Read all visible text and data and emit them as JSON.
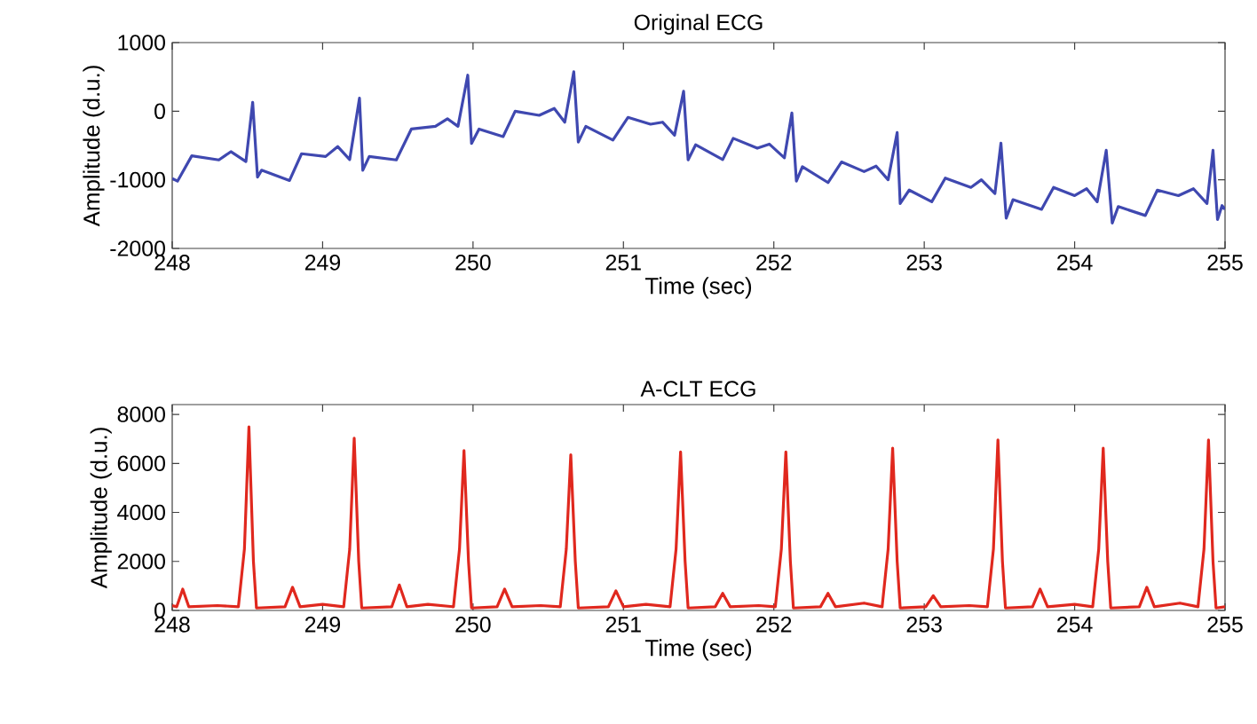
{
  "chart_data": [
    {
      "type": "line",
      "title": "Original ECG",
      "xlabel": "Time (sec)",
      "ylabel": "Amplitude (d.u.)",
      "x": [
        248.0,
        248.035,
        248.13,
        248.31,
        248.39,
        248.49,
        248.535,
        248.567,
        248.594,
        248.78,
        248.86,
        249.02,
        249.1,
        249.18,
        249.245,
        249.267,
        249.31,
        249.49,
        249.59,
        249.75,
        249.83,
        249.9,
        249.965,
        249.99,
        250.04,
        250.2,
        250.28,
        250.44,
        250.54,
        250.61,
        250.67,
        250.7,
        250.75,
        250.93,
        251.03,
        251.18,
        251.26,
        251.34,
        251.4,
        251.43,
        251.48,
        251.66,
        251.73,
        251.89,
        251.97,
        252.07,
        252.12,
        252.15,
        252.19,
        252.36,
        252.45,
        252.6,
        252.68,
        252.76,
        252.82,
        252.84,
        252.9,
        253.05,
        253.14,
        253.31,
        253.38,
        253.47,
        253.51,
        253.545,
        253.59,
        253.78,
        253.86,
        254.0,
        254.08,
        254.15,
        254.21,
        254.25,
        254.29,
        254.47,
        254.55,
        254.69,
        254.79,
        254.88,
        254.92,
        254.95,
        254.98,
        255.0
      ],
      "series": [
        {
          "color": "#3f48b0",
          "values": [
            -980,
            -1020,
            -650,
            -710,
            -590,
            -735,
            130,
            -960,
            -860,
            -1010,
            -620,
            -660,
            -515,
            -705,
            190,
            -860,
            -660,
            -710,
            -260,
            -220,
            -110,
            -220,
            525,
            -470,
            -260,
            -370,
            0,
            -60,
            40,
            -160,
            575,
            -450,
            -220,
            -420,
            -90,
            -190,
            -160,
            -350,
            290,
            -710,
            -490,
            -705,
            -395,
            -540,
            -480,
            -680,
            -25,
            -1020,
            -810,
            -1040,
            -740,
            -880,
            -800,
            -1000,
            -310,
            -1345,
            -1150,
            -1320,
            -975,
            -1110,
            -1000,
            -1200,
            -465,
            -1560,
            -1290,
            -1430,
            -1110,
            -1230,
            -1130,
            -1320,
            -570,
            -1630,
            -1390,
            -1520,
            -1150,
            -1230,
            -1130,
            -1345,
            -570,
            -1580,
            -1375,
            -1430
          ]
        }
      ],
      "xlim": [
        248,
        255
      ],
      "ylim": [
        -2000,
        1000
      ],
      "xticks": [
        248,
        249,
        250,
        251,
        252,
        253,
        254,
        255
      ],
      "yticks": [
        -2000,
        -1000,
        0,
        1000
      ]
    },
    {
      "type": "line",
      "title": "A-CLT ECG",
      "xlabel": "Time (sec)",
      "ylabel": "Amplitude (d.u.)",
      "x": [
        248.0,
        248.03,
        248.07,
        248.11,
        248.3,
        248.44,
        248.48,
        248.51,
        248.54,
        248.56,
        248.75,
        248.8,
        248.85,
        249.0,
        249.14,
        249.18,
        249.21,
        249.24,
        249.26,
        249.46,
        249.51,
        249.56,
        249.7,
        249.87,
        249.91,
        249.94,
        249.97,
        249.99,
        250.16,
        250.21,
        250.26,
        250.45,
        250.58,
        250.62,
        250.65,
        250.68,
        250.7,
        250.9,
        250.95,
        251.0,
        251.15,
        251.31,
        251.35,
        251.38,
        251.41,
        251.43,
        251.61,
        251.66,
        251.71,
        251.9,
        252.01,
        252.05,
        252.08,
        252.11,
        252.13,
        252.31,
        252.36,
        252.41,
        252.6,
        252.72,
        252.76,
        252.79,
        252.82,
        252.84,
        253.01,
        253.06,
        253.11,
        253.3,
        253.42,
        253.46,
        253.49,
        253.52,
        253.54,
        253.72,
        253.77,
        253.82,
        254.0,
        254.12,
        254.16,
        254.19,
        254.22,
        254.24,
        254.43,
        254.48,
        254.53,
        254.7,
        254.82,
        254.86,
        254.89,
        254.92,
        254.94,
        255.0
      ],
      "series": [
        {
          "color": "#e0281e",
          "values": [
            200,
            150,
            870,
            150,
            200,
            150,
            2500,
            7490,
            2000,
            100,
            150,
            945,
            150,
            250,
            150,
            2500,
            7030,
            2000,
            100,
            150,
            1040,
            150,
            250,
            150,
            2500,
            6520,
            2000,
            100,
            150,
            870,
            150,
            200,
            150,
            2500,
            6350,
            2000,
            100,
            150,
            800,
            150,
            250,
            150,
            2500,
            6470,
            2000,
            100,
            150,
            700,
            150,
            200,
            150,
            2500,
            6470,
            2000,
            100,
            150,
            700,
            150,
            300,
            150,
            2500,
            6620,
            2000,
            100,
            150,
            600,
            150,
            200,
            150,
            2500,
            6960,
            2000,
            100,
            150,
            870,
            150,
            250,
            150,
            2500,
            6620,
            2000,
            100,
            150,
            945,
            150,
            300,
            150,
            2500,
            6960,
            2000,
            100,
            150
          ]
        }
      ],
      "xlim": [
        248,
        255
      ],
      "ylim": [
        0,
        8400
      ],
      "xticks": [
        248,
        249,
        250,
        251,
        252,
        253,
        254,
        255
      ],
      "yticks": [
        0,
        2000,
        4000,
        6000,
        8000
      ]
    }
  ]
}
